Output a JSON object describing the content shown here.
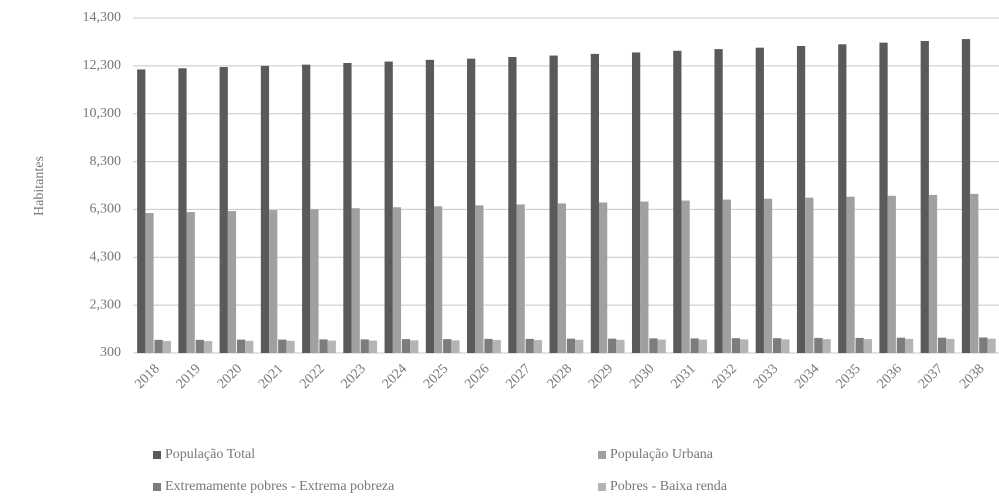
{
  "chart_data": {
    "type": "bar",
    "y_label": "Habitantes",
    "categories": [
      "2018",
      "2019",
      "2020",
      "2021",
      "2022",
      "2023",
      "2024",
      "2025",
      "2026",
      "2027",
      "2028",
      "2029",
      "2030",
      "2031",
      "2032",
      "2033",
      "2034",
      "2035",
      "2036",
      "2037",
      "2038"
    ],
    "series": [
      {
        "name": "População Total",
        "color": "#5a5a5a",
        "values": [
          12150,
          12200,
          12250,
          12300,
          12350,
          12420,
          12480,
          12550,
          12600,
          12670,
          12730,
          12800,
          12860,
          12930,
          13000,
          13060,
          13130,
          13200,
          13270,
          13340,
          13420
        ]
      },
      {
        "name": "População Urbana",
        "color": "#a0a0a0",
        "values": [
          6150,
          6190,
          6230,
          6270,
          6310,
          6350,
          6390,
          6430,
          6470,
          6510,
          6550,
          6590,
          6630,
          6670,
          6710,
          6750,
          6790,
          6830,
          6870,
          6910,
          6950
        ]
      },
      {
        "name": "Extremamente pobres - Extrema pobreza",
        "color": "#7c7c7c",
        "values": [
          850,
          850,
          860,
          860,
          870,
          870,
          880,
          880,
          890,
          890,
          900,
          900,
          910,
          910,
          920,
          920,
          930,
          930,
          940,
          940,
          950
        ]
      },
      {
        "name": "Pobres - Baixa renda",
        "color": "#b4b4b4",
        "values": [
          800,
          800,
          810,
          810,
          820,
          820,
          830,
          830,
          840,
          840,
          850,
          850,
          860,
          860,
          870,
          870,
          880,
          880,
          890,
          890,
          900
        ]
      }
    ],
    "ylim": [
      300,
      14300
    ],
    "yticks": [
      300,
      {
        "value": 2300,
        "label": "2,300"
      },
      {
        "value": 4300,
        "label": "4,300"
      },
      {
        "value": 6300,
        "label": "6,300"
      },
      {
        "value": 8300,
        "label": "8,300"
      },
      {
        "value": 10300,
        "label": "10,300"
      },
      {
        "value": 12300,
        "label": "12,300"
      },
      {
        "value": 14300,
        "label": "14,300"
      }
    ],
    "grid": true
  }
}
